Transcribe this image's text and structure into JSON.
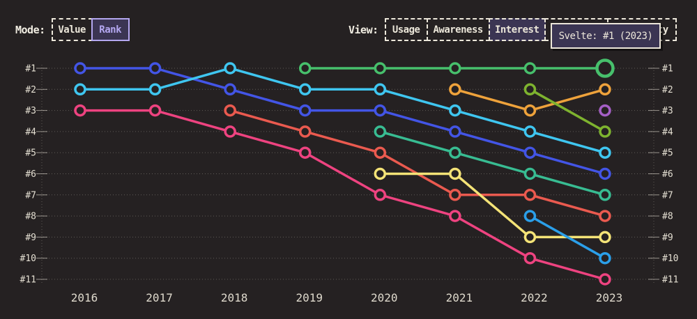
{
  "ui_colors": {
    "background": "#252122",
    "cream_text": "#EBE6D9",
    "accent_purple": "#B4A7F0",
    "selected_panel": "#3B3553",
    "grid": "rgba(231,225,213,0.30)",
    "tick": "rgba(231,225,213,0.60)"
  },
  "controls": {
    "mode": {
      "label": "Mode:",
      "options": [
        {
          "label": "Value",
          "selected": false
        },
        {
          "label": "Rank",
          "selected": true
        }
      ]
    },
    "view": {
      "label": "View:",
      "options": [
        {
          "label": "Usage",
          "selected": false
        },
        {
          "label": "Awareness",
          "selected": false
        },
        {
          "label": "Interest",
          "selected": true
        },
        {
          "label": "",
          "selected": false,
          "occluded_by_tooltip": true
        },
        {
          "label": "ty",
          "selected": false,
          "occluded_by_tooltip": true
        }
      ]
    }
  },
  "tooltip": {
    "text": "Svelte: #1 (2023)"
  },
  "chart_data": {
    "type": "line",
    "subtype": "rank-bump-chart",
    "title": "",
    "xlabel": "",
    "ylabel": "",
    "x": [
      2016,
      2017,
      2018,
      2019,
      2020,
      2021,
      2022,
      2023
    ],
    "y_axis": {
      "ticks": [
        "#1",
        "#2",
        "#3",
        "#4",
        "#5",
        "#6",
        "#7",
        "#8",
        "#9",
        "#10",
        "#11"
      ],
      "min": 1,
      "max": 11,
      "orientation": "rank 1 at top",
      "mirrored_right": true
    },
    "grid": "dotted horizontal line per rank; dotted vertical axis line on both sides with short solid tick marks",
    "legend": "none visible",
    "series": [
      {
        "id": "royal-blue",
        "color": "#4355E6",
        "ranks": [
          1,
          1,
          2,
          3,
          3,
          4,
          5,
          6
        ]
      },
      {
        "id": "cyan",
        "color": "#3FC6F0",
        "ranks": [
          2,
          2,
          1,
          2,
          2,
          3,
          4,
          5
        ]
      },
      {
        "id": "pink",
        "color": "#EE4380",
        "ranks": [
          3,
          3,
          4,
          5,
          7,
          8,
          10,
          11
        ]
      },
      {
        "id": "coral",
        "color": "#EA5A4F",
        "ranks": [
          null,
          null,
          3,
          4,
          5,
          7,
          7,
          8
        ]
      },
      {
        "id": "green",
        "color": "#47C06C",
        "ranks": [
          null,
          null,
          null,
          1,
          1,
          1,
          1,
          1
        ],
        "label": "Svelte"
      },
      {
        "id": "teal",
        "color": "#38BC92",
        "ranks": [
          null,
          null,
          null,
          null,
          4,
          5,
          6,
          7
        ]
      },
      {
        "id": "yellow",
        "color": "#F4E377",
        "ranks": [
          null,
          null,
          null,
          null,
          6,
          6,
          9,
          9
        ]
      },
      {
        "id": "orange",
        "color": "#EEA23B",
        "ranks": [
          null,
          null,
          null,
          null,
          null,
          2,
          3,
          2
        ]
      },
      {
        "id": "lime",
        "color": "#7EB32F",
        "ranks": [
          null,
          null,
          null,
          null,
          null,
          null,
          2,
          4
        ]
      },
      {
        "id": "azure",
        "color": "#2B9FE9",
        "ranks": [
          null,
          null,
          null,
          null,
          null,
          null,
          8,
          10
        ]
      },
      {
        "id": "purple",
        "color": "#A55FC6",
        "ranks": [
          null,
          null,
          null,
          null,
          null,
          null,
          null,
          3
        ]
      }
    ],
    "highlight": {
      "series_id": "green",
      "year": 2023,
      "rank": 1,
      "tooltip_text": "Svelte: #1 (2023)"
    }
  }
}
